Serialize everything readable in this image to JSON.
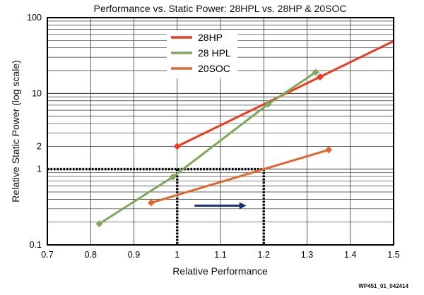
{
  "chart_data": {
    "type": "line",
    "title": "Performance vs. Static Power: 28HPL vs. 28HP & 20SOC",
    "xlabel": "Relative Performance",
    "ylabel": "Relative Static Power (log scale)",
    "xlim": [
      0.7,
      1.5
    ],
    "ylim": [
      0.1,
      100
    ],
    "yscale": "log",
    "grid": true,
    "legend": "top-center",
    "x_ticks": [
      "0.7",
      "0.8",
      "0.9",
      "1",
      "1.1",
      "1.2",
      "1.3",
      "1.4",
      "1.5"
    ],
    "y_ticks": [
      {
        "value": 0.1,
        "label": "0.1"
      },
      {
        "value": 1,
        "label": "1"
      },
      {
        "value": 2,
        "label": "2"
      },
      {
        "value": 10,
        "label": "10"
      },
      {
        "value": 100,
        "label": "100"
      }
    ],
    "series": [
      {
        "name": "28HP",
        "color": "#f03a1e",
        "points": [
          [
            1.0,
            2.0
          ],
          [
            1.33,
            16.5
          ],
          [
            1.5,
            49
          ]
        ],
        "markers": [
          0,
          1
        ]
      },
      {
        "name": "28 HPL",
        "color": "#7fa85a",
        "points": [
          [
            0.82,
            0.19
          ],
          [
            0.99,
            0.79
          ],
          [
            1.21,
            7.2
          ],
          [
            1.32,
            19
          ]
        ],
        "markers": [
          0,
          1,
          2,
          3
        ]
      },
      {
        "name": "20SOC",
        "color": "#e0662a",
        "points": [
          [
            0.94,
            0.36
          ],
          [
            1.35,
            1.8
          ]
        ],
        "markers": [
          0,
          1
        ]
      }
    ],
    "reference_lines": {
      "y": 1,
      "x": [
        1.0,
        1.2
      ],
      "style": "dotted",
      "color": "#000000"
    },
    "arrow": {
      "from": [
        1.04,
        0.33
      ],
      "to": [
        1.16,
        0.33
      ],
      "color": "#1a2f7a"
    }
  },
  "watermark": "WP451_01_042414"
}
